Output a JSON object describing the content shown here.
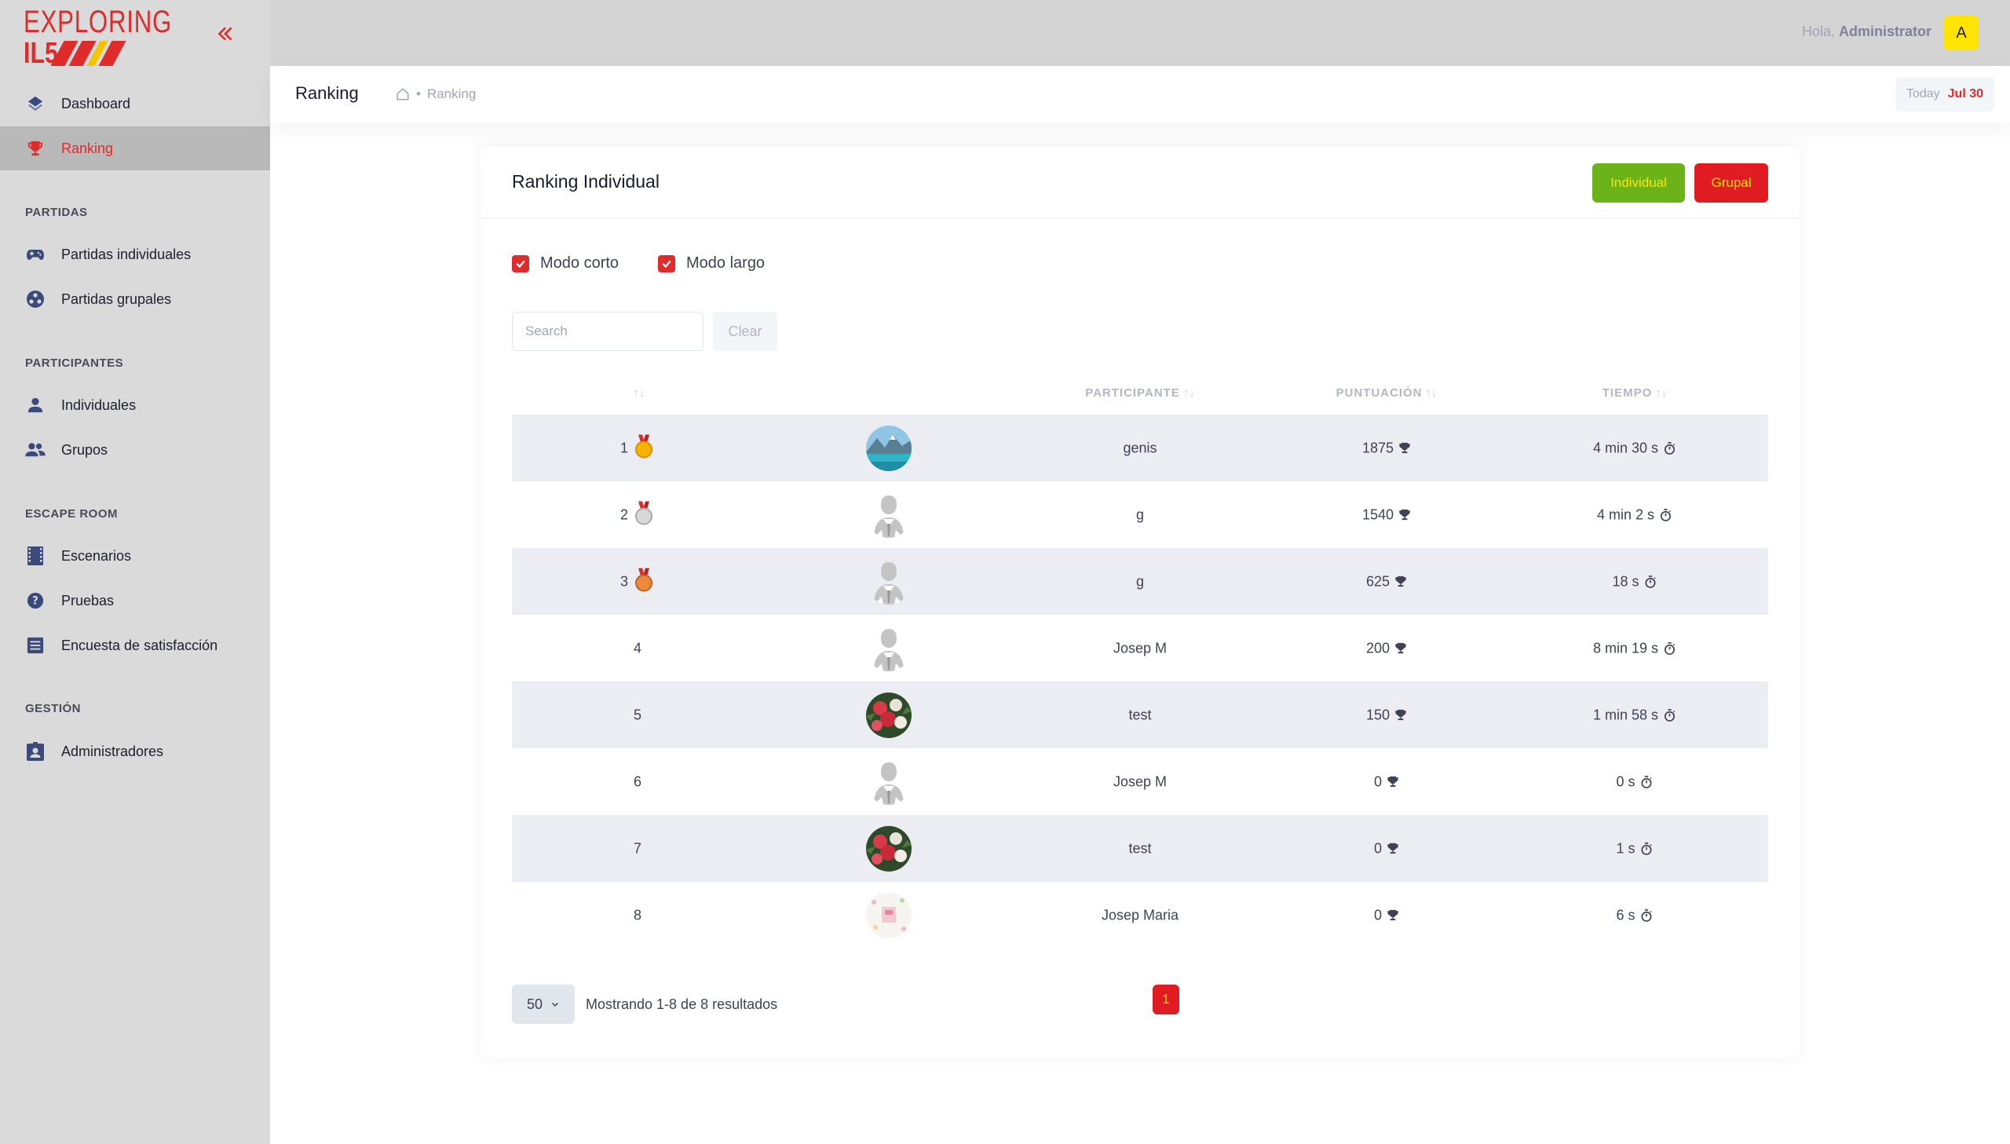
{
  "logo": {
    "line1": "EXPLORING",
    "line2": "IL5"
  },
  "sidebar": {
    "items": [
      {
        "id": "dashboard",
        "label": "Dashboard",
        "icon": "layers-icon"
      },
      {
        "id": "ranking",
        "label": "Ranking",
        "icon": "trophy-icon",
        "active": true
      }
    ],
    "sections": [
      {
        "title": "PARTIDAS",
        "items": [
          {
            "label": "Partidas individuales",
            "icon": "gamepad-icon"
          },
          {
            "label": "Partidas grupales",
            "icon": "group-circle-icon"
          }
        ]
      },
      {
        "title": "PARTICIPANTES",
        "items": [
          {
            "label": "Individuales",
            "icon": "user-icon"
          },
          {
            "label": "Grupos",
            "icon": "users-icon"
          }
        ]
      },
      {
        "title": "ESCAPE ROOM",
        "items": [
          {
            "label": "Escenarios",
            "icon": "film-icon"
          },
          {
            "label": "Pruebas",
            "icon": "question-icon"
          },
          {
            "label": "Encuesta de satisfacción",
            "icon": "list-icon"
          }
        ]
      },
      {
        "title": "GESTIÓN",
        "items": [
          {
            "label": "Administradores",
            "icon": "badge-icon"
          }
        ]
      }
    ]
  },
  "topbar": {
    "greeting": "Hola,",
    "user": "Administrator",
    "avatar_letter": "A"
  },
  "subheader": {
    "title": "Ranking",
    "breadcrumb": "Ranking",
    "today_label": "Today",
    "today_date": "Jul 30"
  },
  "card": {
    "title": "Ranking Individual",
    "btn_individual": "Individual",
    "btn_grupal": "Grupal",
    "check_short": "Modo corto",
    "check_long": "Modo largo",
    "search_placeholder": "Search",
    "clear_label": "Clear"
  },
  "table": {
    "columns": {
      "rank": "",
      "participant": "PARTICIPANTE",
      "score": "PUNTUACIÓN",
      "time": "TIEMPO"
    },
    "sort_glyph": "↑↓",
    "rows": [
      {
        "rank": "1",
        "medal": "gold",
        "avatar": "lake",
        "name": "genis",
        "score": "1875",
        "time": "4 min 30 s"
      },
      {
        "rank": "2",
        "medal": "silver",
        "avatar": "default",
        "name": "g",
        "score": "1540",
        "time": "4 min 2 s"
      },
      {
        "rank": "3",
        "medal": "bronze",
        "avatar": "default",
        "name": "g",
        "score": "625",
        "time": "18 s"
      },
      {
        "rank": "4",
        "medal": "",
        "avatar": "default",
        "name": "Josep M",
        "score": "200",
        "time": "8 min 19 s"
      },
      {
        "rank": "5",
        "medal": "",
        "avatar": "flowers",
        "name": "test",
        "score": "150",
        "time": "1 min 58 s"
      },
      {
        "rank": "6",
        "medal": "",
        "avatar": "default",
        "name": "Josep M",
        "score": "0",
        "time": "0 s"
      },
      {
        "rank": "7",
        "medal": "",
        "avatar": "flowers",
        "name": "test",
        "score": "0",
        "time": "1 s"
      },
      {
        "rank": "8",
        "medal": "",
        "avatar": "pattern",
        "name": "Josep Maria",
        "score": "0",
        "time": "6 s"
      }
    ]
  },
  "pager": {
    "page_size": "50",
    "summary": "Mostrando 1-8 de 8 resultados",
    "current_page": "1"
  },
  "colors": {
    "brand_red": "#e02b2b",
    "brand_yellow": "#ffe400",
    "green": "#6cb31a"
  }
}
